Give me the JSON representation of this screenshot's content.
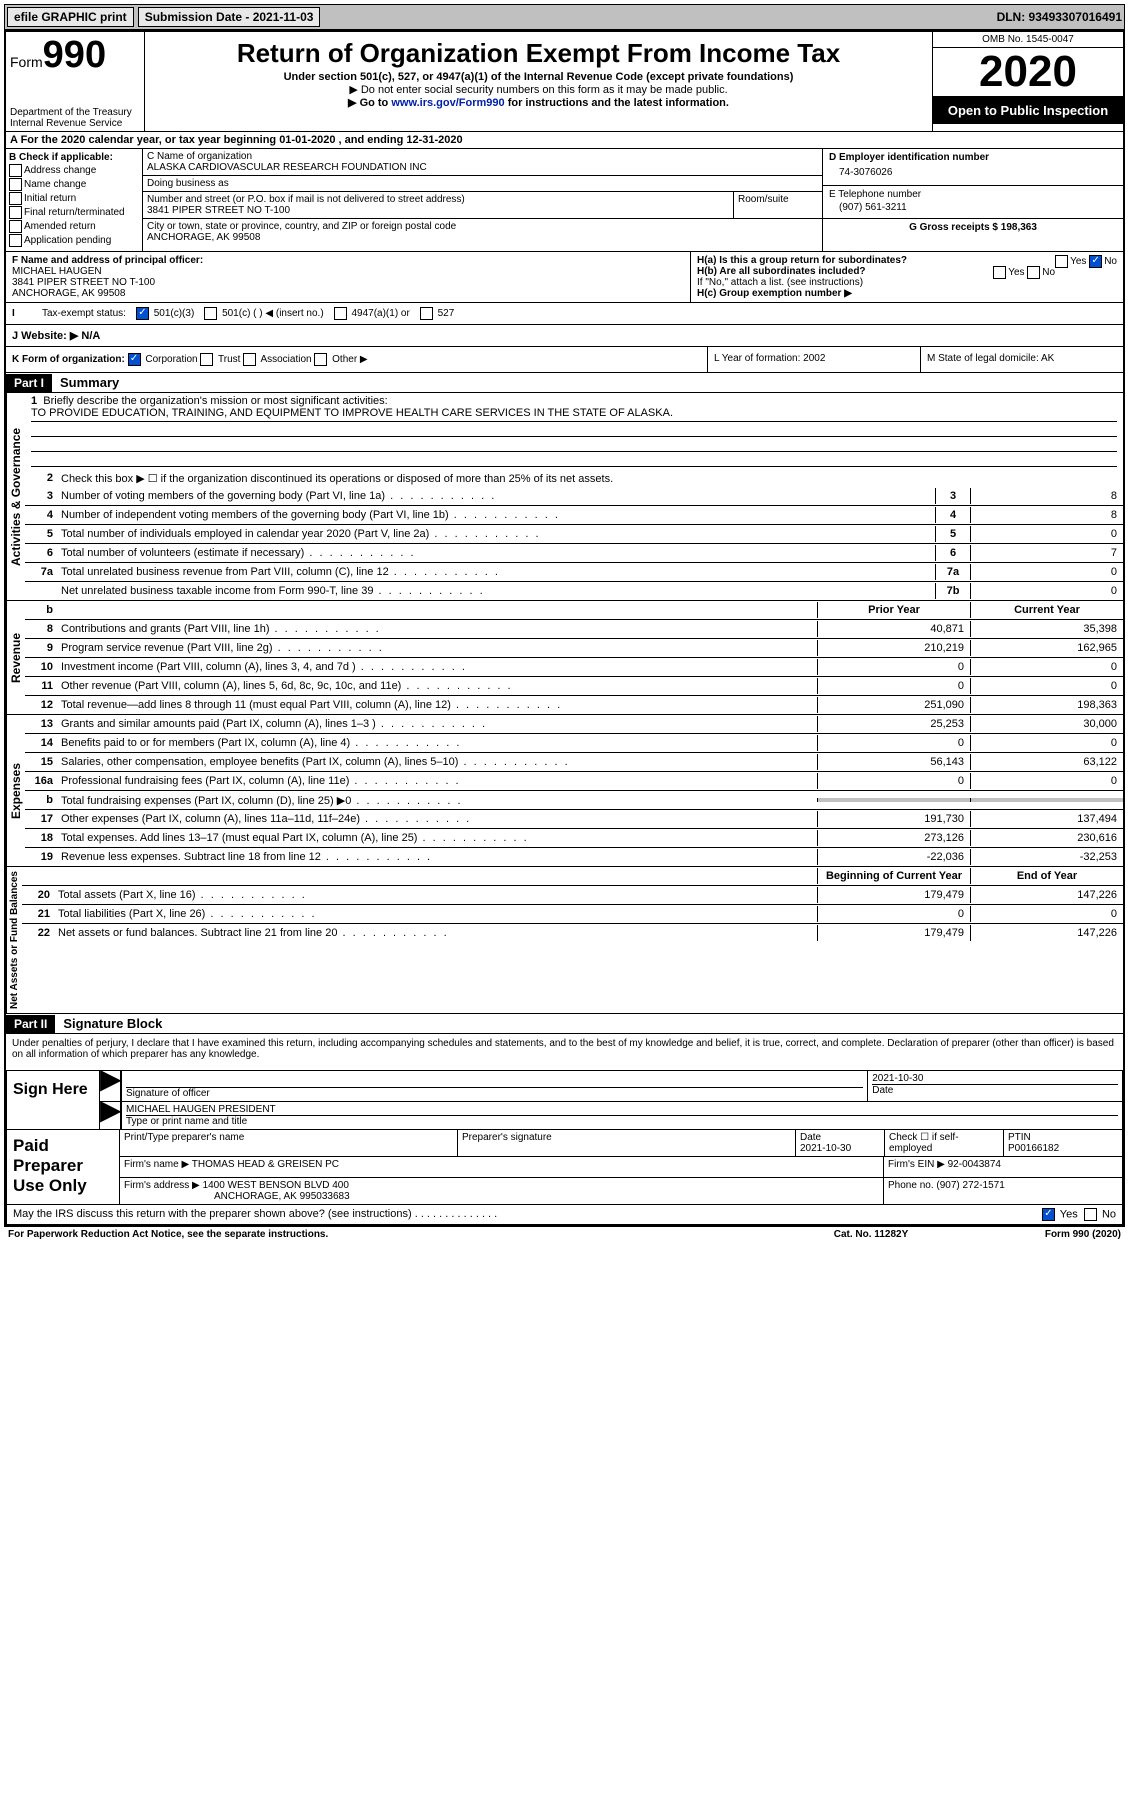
{
  "topbar": {
    "efile": "efile GRAPHIC print",
    "submission_label": "Submission Date - 2021-11-03",
    "dln": "DLN: 93493307016491"
  },
  "header": {
    "form_small": "Form",
    "form_big": "990",
    "title": "Return of Organization Exempt From Income Tax",
    "sub1": "Under section 501(c), 527, or 4947(a)(1) of the Internal Revenue Code (except private foundations)",
    "sub2": "▶ Do not enter social security numbers on this form as it may be made public.",
    "sub3_pre": "▶ Go to ",
    "sub3_link": "www.irs.gov/Form990",
    "sub3_post": " for instructions and the latest information.",
    "dept": "Department of the Treasury\nInternal Revenue Service",
    "omb": "OMB No. 1545-0047",
    "year": "2020",
    "inspect": "Open to Public Inspection"
  },
  "rowA": "A For the 2020 calendar year, or tax year beginning 01-01-2020    , and ending 12-31-2020",
  "colB": {
    "title": "B Check if applicable:",
    "items": [
      "Address change",
      "Name change",
      "Initial return",
      "Final return/terminated",
      "Amended return",
      "Application pending"
    ]
  },
  "colC": {
    "name_label": "C Name of organization",
    "name": "ALASKA CARDIOVASCULAR RESEARCH FOUNDATION INC",
    "dba_label": "Doing business as",
    "dba": "",
    "street_label": "Number and street (or P.O. box if mail is not delivered to street address)",
    "street": "3841 PIPER STREET NO T-100",
    "room_label": "Room/suite",
    "city_label": "City or town, state or province, country, and ZIP or foreign postal code",
    "city": "ANCHORAGE, AK  99508"
  },
  "colDE": {
    "d_label": "D Employer identification number",
    "d_val": "74-3076026",
    "e_label": "E Telephone number",
    "e_val": "(907) 561-3211",
    "g_label": "G Gross receipts $ 198,363"
  },
  "secF": {
    "f_label": "F  Name and address of principal officer:",
    "f_name": "MICHAEL HAUGEN",
    "f_addr1": "3841 PIPER STREET NO T-100",
    "f_addr2": "ANCHORAGE, AK  99508",
    "ha": "H(a)  Is this a group return for subordinates?",
    "hb": "H(b)  Are all subordinates included?",
    "hb_note": "If \"No,\" attach a list. (see instructions)",
    "hc": "H(c)  Group exemption number ▶",
    "yes": "Yes",
    "no": "No"
  },
  "secI": {
    "label": "Tax-exempt status:",
    "o1": "501(c)(3)",
    "o2": "501(c) (   ) ◀ (insert no.)",
    "o3": "4947(a)(1) or",
    "o4": "527"
  },
  "secJ": {
    "label": "J   Website: ▶",
    "val": "N/A"
  },
  "secK": {
    "k": "K Form of organization:",
    "k_opts": [
      "Corporation",
      "Trust",
      "Association",
      "Other ▶"
    ],
    "l": "L Year of formation: 2002",
    "m": "M State of legal domicile: AK"
  },
  "part1": {
    "hdr": "Part I",
    "title": "Summary",
    "q1": "Briefly describe the organization's mission or most significant activities:",
    "mission": "TO PROVIDE EDUCATION, TRAINING, AND EQUIPMENT TO IMPROVE HEALTH CARE SERVICES IN THE STATE OF ALASKA.",
    "q2": "Check this box ▶ ☐  if the organization discontinued its operations or disposed of more than 25% of its net assets.",
    "side1": "Activities & Governance",
    "side2": "Revenue",
    "side3": "Expenses",
    "side4": "Net Assets or Fund Balances",
    "lines_gov": [
      {
        "n": "3",
        "d": "Number of voting members of the governing body (Part VI, line 1a)",
        "box": "3",
        "v": "8"
      },
      {
        "n": "4",
        "d": "Number of independent voting members of the governing body (Part VI, line 1b)",
        "box": "4",
        "v": "8"
      },
      {
        "n": "5",
        "d": "Total number of individuals employed in calendar year 2020 (Part V, line 2a)",
        "box": "5",
        "v": "0"
      },
      {
        "n": "6",
        "d": "Total number of volunteers (estimate if necessary)",
        "box": "6",
        "v": "7"
      },
      {
        "n": "7a",
        "d": "Total unrelated business revenue from Part VIII, column (C), line 12",
        "box": "7a",
        "v": "0"
      },
      {
        "n": "",
        "d": "Net unrelated business taxable income from Form 990-T, line 39",
        "box": "7b",
        "v": "0"
      }
    ],
    "col_hdr": {
      "b": "b",
      "py": "Prior Year",
      "cy": "Current Year"
    },
    "lines_rev": [
      {
        "n": "8",
        "d": "Contributions and grants (Part VIII, line 1h)",
        "py": "40,871",
        "cy": "35,398"
      },
      {
        "n": "9",
        "d": "Program service revenue (Part VIII, line 2g)",
        "py": "210,219",
        "cy": "162,965"
      },
      {
        "n": "10",
        "d": "Investment income (Part VIII, column (A), lines 3, 4, and 7d )",
        "py": "0",
        "cy": "0"
      },
      {
        "n": "11",
        "d": "Other revenue (Part VIII, column (A), lines 5, 6d, 8c, 9c, 10c, and 11e)",
        "py": "0",
        "cy": "0"
      },
      {
        "n": "12",
        "d": "Total revenue—add lines 8 through 11 (must equal Part VIII, column (A), line 12)",
        "py": "251,090",
        "cy": "198,363"
      }
    ],
    "lines_exp": [
      {
        "n": "13",
        "d": "Grants and similar amounts paid (Part IX, column (A), lines 1–3 )",
        "py": "25,253",
        "cy": "30,000"
      },
      {
        "n": "14",
        "d": "Benefits paid to or for members (Part IX, column (A), line 4)",
        "py": "0",
        "cy": "0"
      },
      {
        "n": "15",
        "d": "Salaries, other compensation, employee benefits (Part IX, column (A), lines 5–10)",
        "py": "56,143",
        "cy": "63,122"
      },
      {
        "n": "16a",
        "d": "Professional fundraising fees (Part IX, column (A), line 11e)",
        "py": "0",
        "cy": "0"
      },
      {
        "n": "b",
        "d": "Total fundraising expenses (Part IX, column (D), line 25) ▶0",
        "py": "",
        "cy": ""
      },
      {
        "n": "17",
        "d": "Other expenses (Part IX, column (A), lines 11a–11d, 11f–24e)",
        "py": "191,730",
        "cy": "137,494"
      },
      {
        "n": "18",
        "d": "Total expenses. Add lines 13–17 (must equal Part IX, column (A), line 25)",
        "py": "273,126",
        "cy": "230,616"
      },
      {
        "n": "19",
        "d": "Revenue less expenses. Subtract line 18 from line 12",
        "py": "-22,036",
        "cy": "-32,253"
      }
    ],
    "col_hdr2": {
      "py": "Beginning of Current Year",
      "cy": "End of Year"
    },
    "lines_na": [
      {
        "n": "20",
        "d": "Total assets (Part X, line 16)",
        "py": "179,479",
        "cy": "147,226"
      },
      {
        "n": "21",
        "d": "Total liabilities (Part X, line 26)",
        "py": "0",
        "cy": "0"
      },
      {
        "n": "22",
        "d": "Net assets or fund balances. Subtract line 21 from line 20",
        "py": "179,479",
        "cy": "147,226"
      }
    ]
  },
  "part2": {
    "hdr": "Part II",
    "title": "Signature Block",
    "decl": "Under penalties of perjury, I declare that I have examined this return, including accompanying schedules and statements, and to the best of my knowledge and belief, it is true, correct, and complete. Declaration of preparer (other than officer) is based on all information of which preparer has any knowledge.",
    "sign_here": "Sign Here",
    "sig_officer": "Signature of officer",
    "sig_date": "2021-10-30",
    "date_label": "Date",
    "officer": "MICHAEL HAUGEN  PRESIDENT",
    "officer_label": "Type or print name and title",
    "paid": "Paid Preparer Use Only",
    "pth": "Print/Type preparer's name",
    "psig": "Preparer's signature",
    "pdate": "Date",
    "pdate_val": "2021-10-30",
    "chk": "Check ☐ if self-employed",
    "ptin_label": "PTIN",
    "ptin": "P00166182",
    "firm_name_label": "Firm's name     ▶",
    "firm_name": "THOMAS HEAD & GREISEN PC",
    "firm_ein_label": "Firm's EIN ▶",
    "firm_ein": "92-0043874",
    "firm_addr_label": "Firm's address ▶",
    "firm_addr1": "1400 WEST BENSON BLVD 400",
    "firm_addr2": "ANCHORAGE, AK  995033683",
    "phone_label": "Phone no.",
    "phone": "(907) 272-1571",
    "discuss": "May the IRS discuss this return with the preparer shown above? (see instructions)",
    "yes": "Yes",
    "no": "No"
  },
  "footer": {
    "left": "For Paperwork Reduction Act Notice, see the separate instructions.",
    "mid": "Cat. No. 11282Y",
    "right": "Form 990 (2020)"
  }
}
